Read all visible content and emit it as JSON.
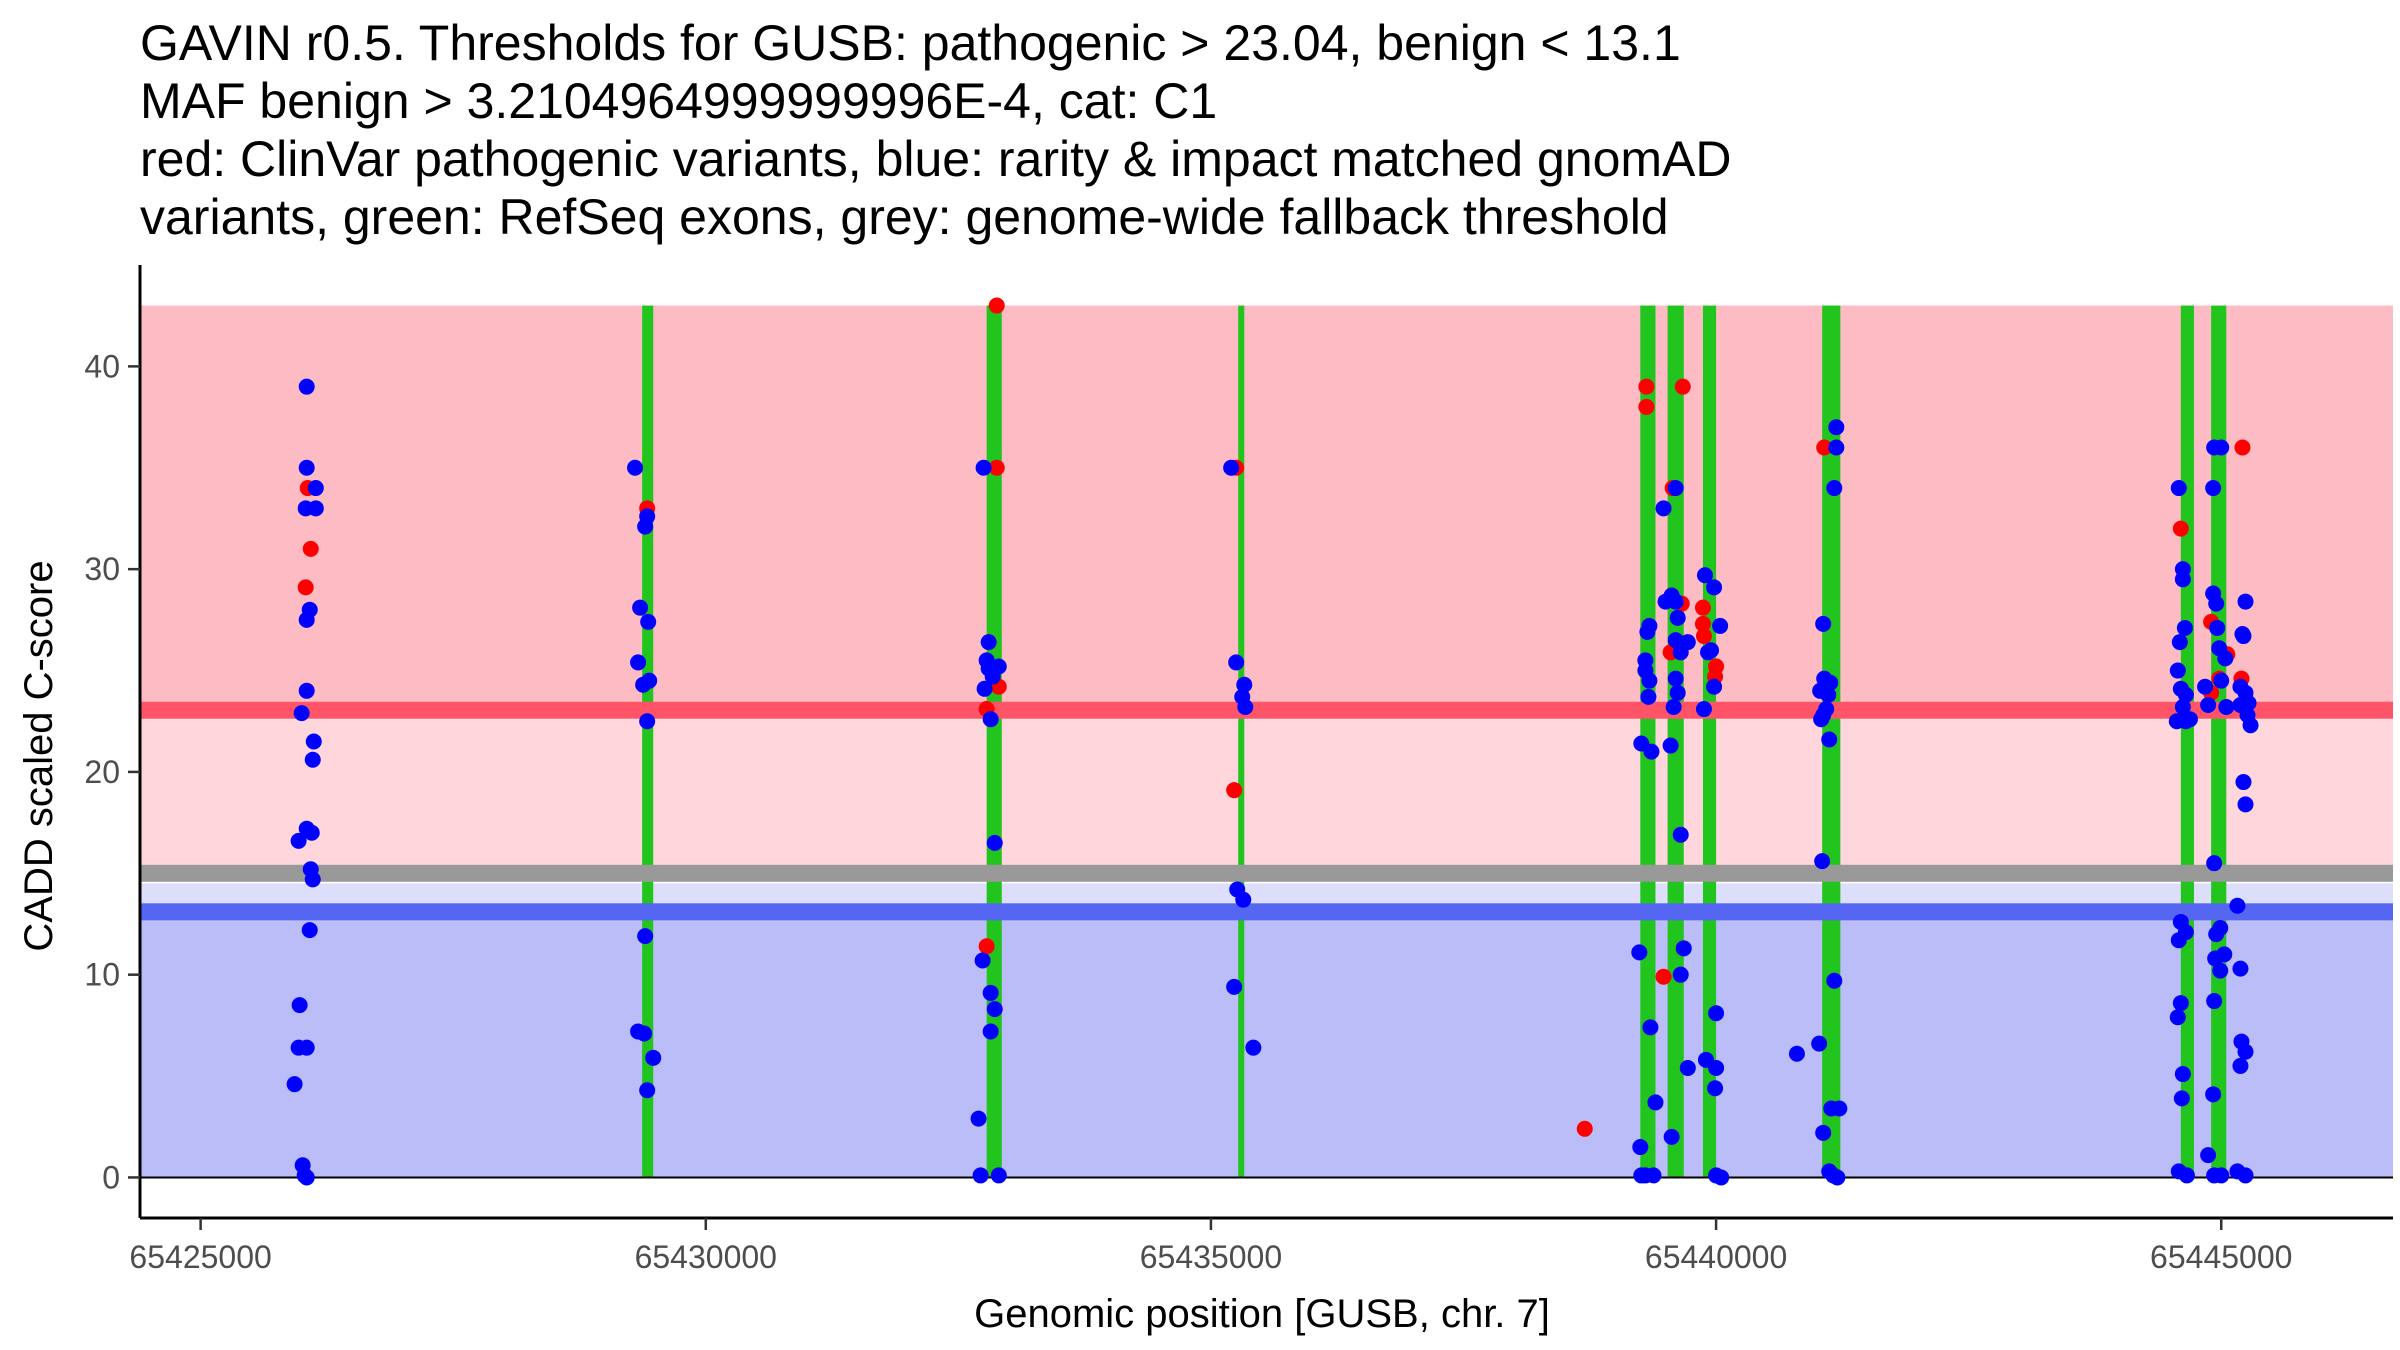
{
  "title_lines": [
    "GAVIN r0.5. Thresholds for GUSB: pathogenic > 23.04, benign < 13.1",
    "MAF benign > 3.2104964999999996E-4, cat: C1",
    "red: ClinVar pathogenic variants, blue: rarity & impact matched gnomAD",
    "variants, green: RefSeq exons, grey: genome-wide fallback threshold"
  ],
  "colors": {
    "pathogenic_band": "#FDBBC3",
    "pathogenic_line": "#FF5468",
    "mid_band": "#FFD6DC",
    "fallback_line": "#999999",
    "benign_band": "#BBBDF9",
    "benign_light": "#DCDEFB",
    "benign_line": "#5566F2",
    "exon": "#22C41E",
    "clinvar_point": "#FF0000",
    "gnomad_point": "#0000FF"
  },
  "chart_data": {
    "type": "scatter",
    "xlabel": "Genomic position [GUSB, chr. 7]",
    "ylabel": "CADD scaled C-score",
    "xlim": [
      65424400,
      65446700
    ],
    "ylim": [
      -2,
      45
    ],
    "x_ticks": [
      65425000,
      65430000,
      65435000,
      65440000,
      65445000
    ],
    "x_tick_labels": [
      "65425000",
      "65430000",
      "65435000",
      "65440000",
      "65445000"
    ],
    "y_ticks": [
      0,
      10,
      20,
      30,
      40
    ],
    "y_tick_labels": [
      "0",
      "10",
      "20",
      "30",
      "40"
    ],
    "thresholds": {
      "pathogenic": 23.04,
      "benign": 13.1,
      "fallback": 15.0,
      "band_top": 43,
      "mid_top": 22.6,
      "fallback_light_bottom": 14.5
    },
    "exons": [
      [
        65429370,
        65429480
      ],
      [
        65432780,
        65432930
      ],
      [
        65435270,
        65435330
      ],
      [
        65439250,
        65439400
      ],
      [
        65439520,
        65439680
      ],
      [
        65439870,
        65440000
      ],
      [
        65441050,
        65441230
      ],
      [
        65444600,
        65444730
      ],
      [
        65444900,
        65445050
      ]
    ],
    "series": [
      {
        "name": "ClinVar pathogenic variants",
        "color": "#FF0000",
        "points": [
          [
            65426060,
            34
          ],
          [
            65426090,
            31
          ],
          [
            65426040,
            29.1
          ],
          [
            65429420,
            33
          ],
          [
            65432880,
            43
          ],
          [
            65432880,
            35
          ],
          [
            65432900,
            24.2
          ],
          [
            65432780,
            23.1
          ],
          [
            65432780,
            11.4
          ],
          [
            65435250,
            35
          ],
          [
            65435230,
            19.1
          ],
          [
            65438700,
            2.4
          ],
          [
            65439310,
            39
          ],
          [
            65439310,
            38
          ],
          [
            65439670,
            39
          ],
          [
            65439570,
            34
          ],
          [
            65439660,
            28.3
          ],
          [
            65439550,
            25.9
          ],
          [
            65439480,
            9.9
          ],
          [
            65439870,
            28.1
          ],
          [
            65439870,
            27.3
          ],
          [
            65439880,
            26.7
          ],
          [
            65440000,
            25.2
          ],
          [
            65439990,
            24.7
          ],
          [
            65441070,
            36
          ],
          [
            65444600,
            32
          ],
          [
            65444900,
            27.4
          ],
          [
            65444980,
            24.6
          ],
          [
            65445060,
            25.8
          ],
          [
            65444900,
            23.9
          ],
          [
            65445210,
            36
          ],
          [
            65445200,
            24.6
          ]
        ]
      },
      {
        "name": "rarity & impact matched gnomAD variants",
        "color": "#0000FF",
        "points": [
          [
            65426050,
            39
          ],
          [
            65426050,
            35
          ],
          [
            65426040,
            33
          ],
          [
            65426140,
            34
          ],
          [
            65426140,
            33
          ],
          [
            65426080,
            28
          ],
          [
            65426050,
            27.5
          ],
          [
            65426050,
            24
          ],
          [
            65426000,
            22.9
          ],
          [
            65426120,
            21.5
          ],
          [
            65426110,
            20.6
          ],
          [
            65426050,
            17.2
          ],
          [
            65426100,
            17
          ],
          [
            65425970,
            16.6
          ],
          [
            65426090,
            15.2
          ],
          [
            65426110,
            14.7
          ],
          [
            65426080,
            12.2
          ],
          [
            65425980,
            8.5
          ],
          [
            65425970,
            6.4
          ],
          [
            65426050,
            6.4
          ],
          [
            65425930,
            4.6
          ],
          [
            65426010,
            0.6
          ],
          [
            65426030,
            0.1
          ],
          [
            65426050,
            0.0
          ],
          [
            65429300,
            35
          ],
          [
            65429420,
            32.6
          ],
          [
            65429400,
            32.1
          ],
          [
            65429350,
            28.1
          ],
          [
            65429430,
            27.4
          ],
          [
            65429330,
            25.4
          ],
          [
            65429440,
            24.5
          ],
          [
            65429380,
            24.3
          ],
          [
            65429420,
            22.5
          ],
          [
            65429400,
            11.9
          ],
          [
            65429330,
            7.2
          ],
          [
            65429390,
            7.1
          ],
          [
            65429480,
            5.9
          ],
          [
            65429420,
            4.3
          ],
          [
            65432750,
            35
          ],
          [
            65432800,
            26.4
          ],
          [
            65432780,
            25.5
          ],
          [
            65432800,
            25.1
          ],
          [
            65432900,
            25.2
          ],
          [
            65432840,
            24.7
          ],
          [
            65432760,
            24.1
          ],
          [
            65432820,
            22.6
          ],
          [
            65432860,
            16.5
          ],
          [
            65432740,
            10.7
          ],
          [
            65432820,
            9.1
          ],
          [
            65432860,
            8.3
          ],
          [
            65432820,
            7.2
          ],
          [
            65432700,
            2.9
          ],
          [
            65432720,
            0.1
          ],
          [
            65432900,
            0.1
          ],
          [
            65435200,
            35
          ],
          [
            65435250,
            25.4
          ],
          [
            65435330,
            24.3
          ],
          [
            65435310,
            23.7
          ],
          [
            65435340,
            23.2
          ],
          [
            65435260,
            14.2
          ],
          [
            65435320,
            13.7
          ],
          [
            65435230,
            9.4
          ],
          [
            65435420,
            6.4
          ],
          [
            65439260,
            21.4
          ],
          [
            65439300,
            25.5
          ],
          [
            65439340,
            27.2
          ],
          [
            65439320,
            26.9
          ],
          [
            65439300,
            25
          ],
          [
            65439340,
            24.5
          ],
          [
            65439330,
            23.7
          ],
          [
            65439360,
            21
          ],
          [
            65439240,
            11.1
          ],
          [
            65439350,
            7.4
          ],
          [
            65439400,
            3.7
          ],
          [
            65439250,
            1.5
          ],
          [
            65439260,
            0.1
          ],
          [
            65439300,
            0.1
          ],
          [
            65439380,
            0.1
          ],
          [
            65439480,
            33
          ],
          [
            65439600,
            34
          ],
          [
            65439500,
            28.4
          ],
          [
            65439560,
            28.7
          ],
          [
            65439600,
            28.4
          ],
          [
            65439620,
            27.6
          ],
          [
            65439720,
            26.4
          ],
          [
            65439600,
            26.5
          ],
          [
            65439650,
            25.9
          ],
          [
            65439600,
            24.6
          ],
          [
            65439620,
            23.9
          ],
          [
            65439580,
            23.2
          ],
          [
            65439550,
            21.3
          ],
          [
            65439650,
            16.9
          ],
          [
            65439680,
            11.3
          ],
          [
            65439650,
            10
          ],
          [
            65439720,
            5.4
          ],
          [
            65439560,
            2
          ],
          [
            65439890,
            29.7
          ],
          [
            65439980,
            29.1
          ],
          [
            65440040,
            27.2
          ],
          [
            65439920,
            25.9
          ],
          [
            65439950,
            26
          ],
          [
            65439980,
            24.2
          ],
          [
            65439880,
            23.1
          ],
          [
            65440000,
            8.1
          ],
          [
            65439900,
            5.8
          ],
          [
            65440000,
            5.4
          ],
          [
            65439990,
            4.4
          ],
          [
            65440000,
            0.1
          ],
          [
            65440050,
            0.0
          ],
          [
            65440800,
            6.1
          ],
          [
            65441060,
            27.3
          ],
          [
            65441070,
            24.6
          ],
          [
            65441130,
            24.4
          ],
          [
            65441030,
            24
          ],
          [
            65441110,
            23.8
          ],
          [
            65441090,
            23.1
          ],
          [
            65441060,
            22.8
          ],
          [
            65441040,
            22.6
          ],
          [
            65441120,
            21.6
          ],
          [
            65441050,
            15.6
          ],
          [
            65441020,
            6.6
          ],
          [
            65441170,
            9.7
          ],
          [
            65441140,
            3.4
          ],
          [
            65441220,
            3.4
          ],
          [
            65441060,
            2.2
          ],
          [
            65441120,
            0.3
          ],
          [
            65441160,
            0.1
          ],
          [
            65441200,
            0.0
          ],
          [
            65441190,
            37
          ],
          [
            65441190,
            36
          ],
          [
            65441170,
            34
          ],
          [
            65444580,
            34
          ],
          [
            65444620,
            30
          ],
          [
            65444620,
            29.5
          ],
          [
            65444640,
            27.1
          ],
          [
            65444590,
            26.4
          ],
          [
            65444570,
            25
          ],
          [
            65444600,
            24.1
          ],
          [
            65444650,
            23.8
          ],
          [
            65444620,
            23.2
          ],
          [
            65444560,
            22.5
          ],
          [
            65444650,
            22.5
          ],
          [
            65444690,
            22.6
          ],
          [
            65444600,
            12.6
          ],
          [
            65444650,
            12.1
          ],
          [
            65444580,
            11.7
          ],
          [
            65444600,
            8.6
          ],
          [
            65444570,
            7.9
          ],
          [
            65444620,
            5.1
          ],
          [
            65444610,
            3.9
          ],
          [
            65444580,
            0.3
          ],
          [
            65444660,
            0.1
          ],
          [
            65444930,
            36
          ],
          [
            65445000,
            36
          ],
          [
            65444920,
            34
          ],
          [
            65444920,
            28.8
          ],
          [
            65444950,
            28.3
          ],
          [
            65444960,
            27.1
          ],
          [
            65444980,
            26.1
          ],
          [
            65445040,
            25.6
          ],
          [
            65445000,
            24.5
          ],
          [
            65444840,
            24.2
          ],
          [
            65444870,
            23.3
          ],
          [
            65445050,
            23.2
          ],
          [
            65444930,
            15.5
          ],
          [
            65444990,
            12.3
          ],
          [
            65444950,
            12.0
          ],
          [
            65444940,
            10.8
          ],
          [
            65445030,
            11.0
          ],
          [
            65444990,
            10.2
          ],
          [
            65444930,
            8.7
          ],
          [
            65444920,
            4.1
          ],
          [
            65444870,
            1.1
          ],
          [
            65444930,
            0.1
          ],
          [
            65445000,
            0.1
          ],
          [
            65445240,
            28.4
          ],
          [
            65445210,
            26.8
          ],
          [
            65445220,
            26.7
          ],
          [
            65445190,
            24.2
          ],
          [
            65445190,
            23.3
          ],
          [
            65445240,
            23.9
          ],
          [
            65445270,
            23.4
          ],
          [
            65445260,
            22.8
          ],
          [
            65445290,
            22.3
          ],
          [
            65445220,
            19.5
          ],
          [
            65445240,
            18.4
          ],
          [
            65445160,
            13.4
          ],
          [
            65445190,
            10.3
          ],
          [
            65445200,
            6.7
          ],
          [
            65445240,
            6.2
          ],
          [
            65445190,
            5.5
          ],
          [
            65445160,
            0.3
          ],
          [
            65445240,
            0.1
          ]
        ]
      }
    ]
  }
}
